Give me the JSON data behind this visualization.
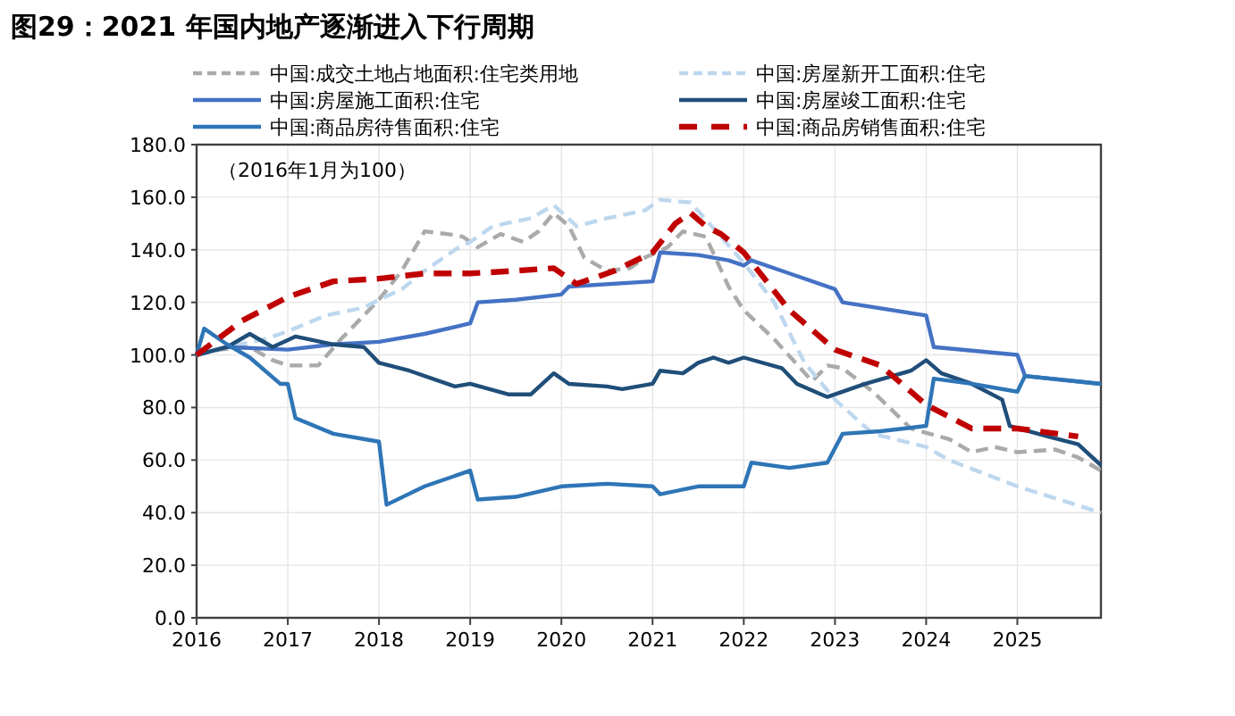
{
  "chart_data": {
    "type": "line",
    "title": "图29：2021 年国内地产逐渐进入下行周期",
    "annotations": [
      "（2016年1月为100）"
    ],
    "xlim": [
      "2016-01",
      "2025-12"
    ],
    "xticks": [
      {
        "value": "2016-01",
        "label": "2016"
      },
      {
        "value": "2017-01",
        "label": "2017"
      },
      {
        "value": "2018-01",
        "label": "2018"
      },
      {
        "value": "2019-01",
        "label": "2019"
      },
      {
        "value": "2020-01",
        "label": "2020"
      },
      {
        "value": "2021-01",
        "label": "2021"
      },
      {
        "value": "2022-01",
        "label": "2022"
      },
      {
        "value": "2023-01",
        "label": "2023"
      },
      {
        "value": "2024-01",
        "label": "2024"
      },
      {
        "value": "2025-01",
        "label": "2025"
      }
    ],
    "ylim": [
      0,
      180
    ],
    "yticks": [
      {
        "value": 0,
        "label": "0.0"
      },
      {
        "value": 20,
        "label": "20.0"
      },
      {
        "value": 40,
        "label": "40.0"
      },
      {
        "value": 60,
        "label": "60.0"
      },
      {
        "value": 80,
        "label": "80.0"
      },
      {
        "value": 100,
        "label": "100.0"
      },
      {
        "value": 120,
        "label": "120.0"
      },
      {
        "value": 140,
        "label": "140.0"
      },
      {
        "value": 160,
        "label": "160.0"
      },
      {
        "value": 180,
        "label": "180.0"
      }
    ],
    "grid": true,
    "legend": "top",
    "series": [
      {
        "name": "中国:成交土地占地面积:住宅类用地",
        "color": "#aaaaaa",
        "line_style": "dashed",
        "x": [
          "2016-01",
          "2016-04",
          "2016-08",
          "2016-11",
          "2017-01",
          "2017-05",
          "2017-08",
          "2018-01",
          "2018-04",
          "2018-07",
          "2018-10",
          "2018-12",
          "2019-02",
          "2019-05",
          "2019-08",
          "2019-10",
          "2019-12",
          "2020-02",
          "2020-04",
          "2020-07",
          "2020-10",
          "2020-12",
          "2021-03",
          "2021-05",
          "2021-08",
          "2021-11",
          "2022-01",
          "2022-05",
          "2022-10",
          "2022-12",
          "2023-02",
          "2023-06",
          "2023-11",
          "2024-04",
          "2024-07",
          "2024-10",
          "2025-01",
          "2025-06",
          "2025-09",
          "2025-12"
        ],
        "values": [
          100,
          102,
          103,
          98,
          96,
          96,
          106,
          121,
          132,
          147,
          146,
          145,
          141,
          146,
          143,
          147,
          154,
          149,
          137,
          132,
          133,
          137,
          141,
          147,
          145,
          126,
          117,
          106,
          90,
          96,
          95,
          86,
          72,
          68,
          63,
          65,
          63,
          64,
          61,
          56
        ]
      },
      {
        "name": "中国:房屋新开工面积:住宅",
        "color": "#bdd7ee",
        "line_style": "dashed",
        "x": [
          "2016-01",
          "2016-05",
          "2016-10",
          "2017-01",
          "2017-06",
          "2017-11",
          "2018-01",
          "2018-04",
          "2018-07",
          "2018-11",
          "2019-01",
          "2019-04",
          "2019-09",
          "2019-12",
          "2020-03",
          "2020-07",
          "2020-12",
          "2021-02",
          "2021-06",
          "2021-10",
          "2022-01",
          "2022-05",
          "2022-09",
          "2023-01",
          "2023-06",
          "2024-01",
          "2024-04",
          "2025-01",
          "2025-12"
        ],
        "values": [
          100,
          103,
          106,
          109,
          115,
          118,
          121,
          125,
          132,
          140,
          143,
          149,
          152,
          157,
          149,
          152,
          155,
          159,
          158,
          145,
          135,
          120,
          97,
          83,
          70,
          65,
          60,
          50,
          40
        ]
      },
      {
        "name": "中国:房屋施工面积:住宅",
        "color": "#4472c4",
        "line_style": "solid",
        "x": [
          "2016-01",
          "2016-05",
          "2017-01",
          "2017-07",
          "2018-01",
          "2018-07",
          "2019-01",
          "2019-02",
          "2019-07",
          "2020-01",
          "2020-02",
          "2021-01",
          "2021-02",
          "2021-07",
          "2021-11",
          "2022-01",
          "2022-02",
          "2022-07",
          "2023-01",
          "2023-02",
          "2024-01",
          "2024-02",
          "2025-01",
          "2025-02",
          "2025-12"
        ],
        "values": [
          100,
          103,
          102,
          104,
          105,
          108,
          112,
          120,
          121,
          123,
          126,
          128,
          139,
          138,
          136,
          134,
          136,
          131,
          125,
          120,
          115,
          103,
          100,
          92,
          89
        ]
      },
      {
        "name": "中国:房屋竣工面积:住宅",
        "color": "#1f4e79",
        "line_style": "solid",
        "x": [
          "2016-01",
          "2016-05",
          "2016-08",
          "2016-11",
          "2017-02",
          "2017-07",
          "2017-11",
          "2018-01",
          "2018-05",
          "2018-11",
          "2019-01",
          "2019-06",
          "2019-09",
          "2019-12",
          "2020-02",
          "2020-07",
          "2020-09",
          "2021-01",
          "2021-02",
          "2021-05",
          "2021-07",
          "2021-09",
          "2021-11",
          "2022-01",
          "2022-06",
          "2022-08",
          "2022-12",
          "2023-05",
          "2023-11",
          "2024-01",
          "2024-03",
          "2024-07",
          "2024-11",
          "2024-12",
          "2025-05",
          "2025-09",
          "2025-12"
        ],
        "values": [
          100,
          103,
          108,
          103,
          107,
          104,
          103,
          97,
          94,
          88,
          89,
          85,
          85,
          93,
          89,
          88,
          87,
          89,
          94,
          93,
          97,
          99,
          97,
          99,
          95,
          89,
          84,
          89,
          94,
          98,
          93,
          89,
          83,
          73,
          69,
          66,
          58
        ]
      },
      {
        "name": "中国:商品房待售面积:住宅",
        "color": "#2e75b6",
        "line_style": "solid",
        "x": [
          "2016-01",
          "2016-02",
          "2016-05",
          "2016-08",
          "2016-12",
          "2017-01",
          "2017-02",
          "2017-07",
          "2017-11",
          "2018-01",
          "2018-02",
          "2018-07",
          "2019-01",
          "2019-02",
          "2019-07",
          "2020-01",
          "2020-07",
          "2021-01",
          "2021-02",
          "2021-07",
          "2022-01",
          "2022-02",
          "2022-07",
          "2022-12",
          "2023-02",
          "2023-07",
          "2024-01",
          "2024-02",
          "2024-07",
          "2025-01",
          "2025-02",
          "2025-12"
        ],
        "values": [
          100,
          110,
          104,
          99,
          89,
          89,
          76,
          70,
          68,
          67,
          43,
          50,
          56,
          45,
          46,
          50,
          51,
          50,
          47,
          50,
          50,
          59,
          57,
          59,
          70,
          71,
          73,
          91,
          89,
          86,
          92,
          89
        ]
      },
      {
        "name": "中国:商品房销售面积:住宅",
        "color": "#c00000",
        "line_style": "dashed",
        "x": [
          "2016-01",
          "2016-07",
          "2017-01",
          "2017-07",
          "2018-01",
          "2018-07",
          "2019-01",
          "2019-07",
          "2019-12",
          "2020-03",
          "2020-08",
          "2021-01",
          "2021-04",
          "2021-06",
          "2021-08",
          "2021-10",
          "2022-01",
          "2022-07",
          "2023-01",
          "2023-07",
          "2024-01",
          "2024-07",
          "2025-01",
          "2025-09"
        ],
        "values": [
          100,
          113,
          122,
          128,
          129,
          131,
          131,
          132,
          133,
          127,
          132,
          139,
          150,
          154,
          149,
          146,
          139,
          117,
          102,
          96,
          81,
          72,
          72,
          69
        ]
      }
    ]
  }
}
